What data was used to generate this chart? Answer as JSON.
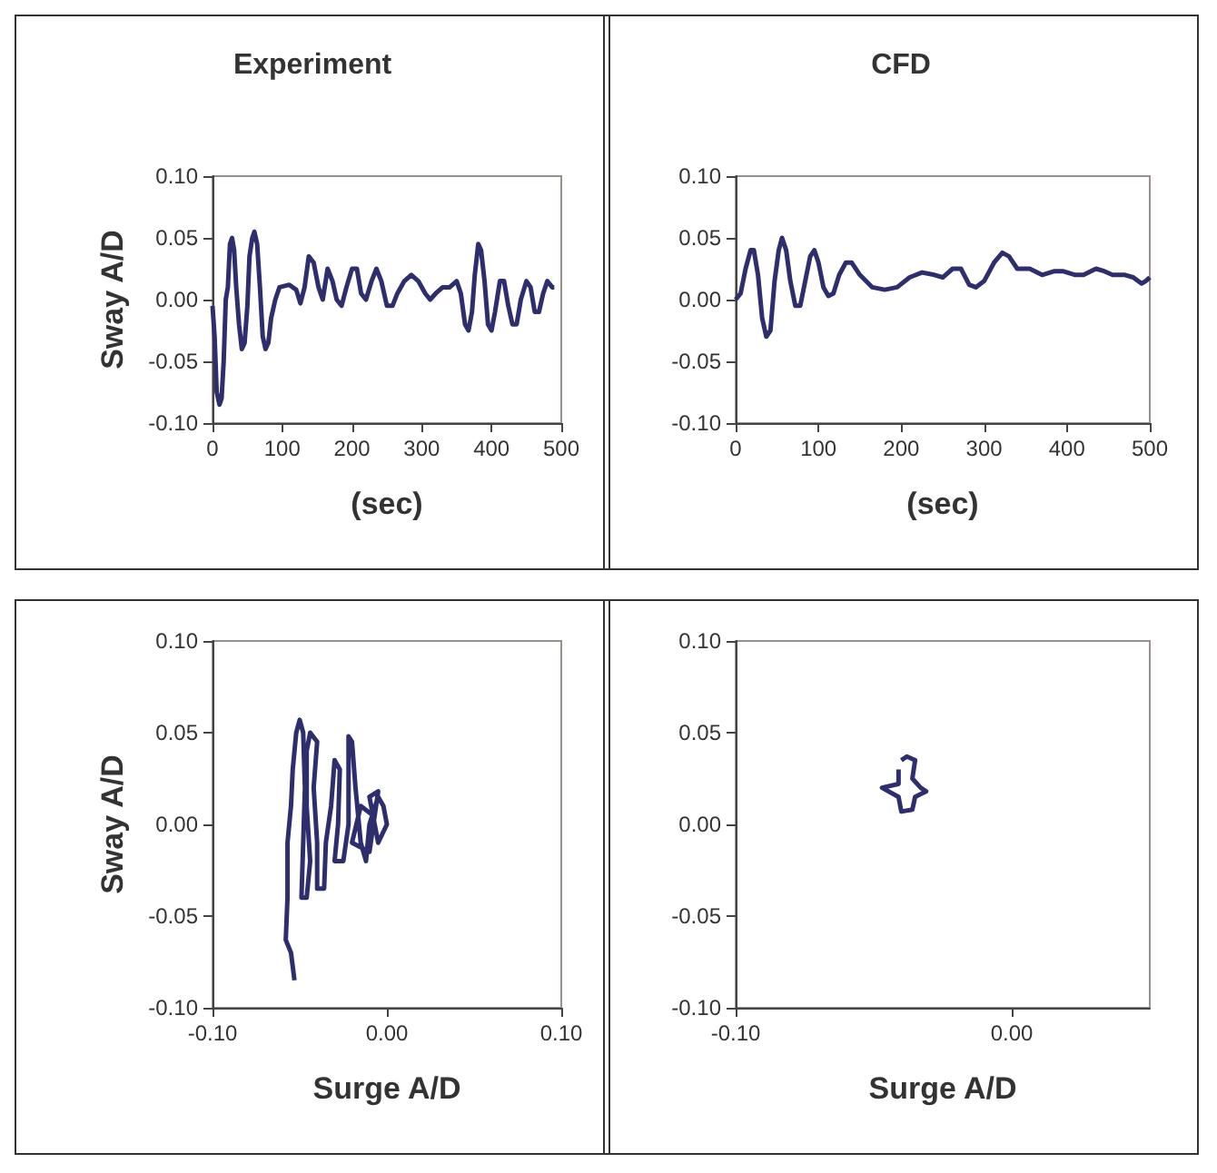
{
  "chart_data": [
    {
      "type": "line",
      "title": "Experiment",
      "xlabel": "(sec)",
      "ylabel": "Sway A/D",
      "marker": "none",
      "grid": false,
      "xlim": [
        0,
        500
      ],
      "xticks": [
        0,
        100,
        200,
        300,
        400,
        500
      ],
      "ylim": [
        -0.1,
        0.1
      ],
      "yticks": [
        {
          "value": -0.1,
          "label": "-0.10"
        },
        {
          "value": -0.05,
          "label": "-0.05"
        },
        {
          "value": 0,
          "label": "0.00"
        },
        {
          "value": 0.05,
          "label": "0.05"
        },
        {
          "value": 0.1,
          "label": "0.10"
        }
      ],
      "series": [
        {
          "color": "#2e2e6e",
          "x": [
            0,
            3,
            6,
            10,
            13,
            16,
            19,
            22,
            25,
            28,
            31,
            34,
            38,
            42,
            46,
            50,
            53,
            57,
            60,
            64,
            68,
            72,
            76,
            80,
            84,
            90,
            96,
            110,
            120,
            126,
            132,
            138,
            145,
            152,
            158,
            165,
            172,
            178,
            185,
            192,
            200,
            207,
            213,
            220,
            228,
            235,
            242,
            250,
            258,
            265,
            275,
            285,
            295,
            305,
            312,
            320,
            330,
            340,
            350,
            356,
            362,
            367,
            372,
            376,
            381,
            385,
            390,
            395,
            400,
            405,
            412,
            418,
            424,
            430,
            436,
            442,
            450,
            456,
            462,
            468,
            474,
            480,
            487,
            490
          ],
          "values": [
            -0.005,
            -0.03,
            -0.075,
            -0.085,
            -0.08,
            -0.05,
            0.0,
            0.01,
            0.045,
            0.05,
            0.04,
            0.01,
            -0.02,
            -0.04,
            -0.035,
            -0.005,
            0.035,
            0.05,
            0.055,
            0.045,
            0.01,
            -0.03,
            -0.04,
            -0.035,
            -0.015,
            0.0,
            0.01,
            0.012,
            0.008,
            -0.003,
            0.01,
            0.035,
            0.03,
            0.01,
            0.0,
            0.025,
            0.015,
            0.0,
            -0.005,
            0.01,
            0.025,
            0.025,
            0.005,
            0.0,
            0.015,
            0.025,
            0.015,
            -0.005,
            -0.005,
            0.005,
            0.015,
            0.02,
            0.015,
            0.005,
            0.0,
            0.005,
            0.01,
            0.01,
            0.015,
            0.005,
            -0.02,
            -0.025,
            -0.01,
            0.02,
            0.045,
            0.04,
            0.015,
            -0.02,
            -0.025,
            -0.01,
            0.015,
            0.015,
            -0.005,
            -0.02,
            -0.02,
            0.0,
            0.015,
            0.01,
            -0.01,
            -0.01,
            0.005,
            0.015,
            0.01,
            0.01
          ]
        }
      ]
    },
    {
      "type": "line",
      "title": "CFD",
      "xlabel": "(sec)",
      "marker": "none",
      "grid": false,
      "xlim": [
        0,
        500
      ],
      "xticks": [
        0,
        100,
        200,
        300,
        400,
        500
      ],
      "ylim": [
        -0.1,
        0.1
      ],
      "yticks": [
        {
          "value": -0.1,
          "label": "-0.10"
        },
        {
          "value": -0.05,
          "label": "-0.05"
        },
        {
          "value": 0,
          "label": "0.00"
        },
        {
          "value": 0.05,
          "label": "0.05"
        },
        {
          "value": 0.1,
          "label": "0.10"
        }
      ],
      "series": [
        {
          "color": "#2e2e6e",
          "x": [
            0,
            6,
            12,
            18,
            22,
            27,
            32,
            37,
            42,
            47,
            52,
            56,
            61,
            66,
            72,
            78,
            84,
            90,
            95,
            100,
            106,
            112,
            118,
            125,
            133,
            140,
            150,
            165,
            180,
            195,
            210,
            225,
            240,
            250,
            262,
            272,
            282,
            290,
            300,
            312,
            322,
            330,
            340,
            355,
            370,
            385,
            395,
            410,
            420,
            435,
            445,
            455,
            470,
            480,
            490,
            495,
            500
          ],
          "values": [
            0.0,
            0.005,
            0.025,
            0.04,
            0.04,
            0.02,
            -0.015,
            -0.03,
            -0.025,
            0.015,
            0.04,
            0.05,
            0.04,
            0.015,
            -0.005,
            -0.005,
            0.015,
            0.035,
            0.04,
            0.03,
            0.01,
            0.003,
            0.005,
            0.02,
            0.03,
            0.03,
            0.02,
            0.01,
            0.008,
            0.01,
            0.018,
            0.022,
            0.02,
            0.018,
            0.025,
            0.025,
            0.012,
            0.01,
            0.015,
            0.03,
            0.038,
            0.035,
            0.025,
            0.025,
            0.02,
            0.023,
            0.023,
            0.02,
            0.02,
            0.025,
            0.023,
            0.02,
            0.02,
            0.018,
            0.013,
            0.015,
            0.018
          ]
        }
      ]
    },
    {
      "type": "line",
      "xlabel": "Surge A/D",
      "ylabel": "Sway A/D",
      "marker": "none",
      "grid": false,
      "xlim": [
        -0.1,
        0.1
      ],
      "xticks": [
        {
          "value": -0.1,
          "label": "-0.10"
        },
        {
          "value": 0,
          "label": "0.00"
        },
        {
          "value": 0.1,
          "label": "0.10"
        }
      ],
      "ylim": [
        -0.1,
        0.1
      ],
      "yticks": [
        {
          "value": -0.1,
          "label": "-0.10"
        },
        {
          "value": -0.05,
          "label": "-0.05"
        },
        {
          "value": 0,
          "label": "0.00"
        },
        {
          "value": 0.05,
          "label": "0.05"
        },
        {
          "value": 0.1,
          "label": "0.10"
        }
      ],
      "series": [
        {
          "color": "#2e2e6e",
          "x": [
            -0.053,
            -0.055,
            -0.058,
            -0.057,
            -0.057,
            -0.055,
            -0.054,
            -0.052,
            -0.05,
            -0.048,
            -0.047,
            -0.048,
            -0.049,
            -0.046,
            -0.044,
            -0.046,
            -0.046,
            -0.044,
            -0.04,
            -0.042,
            -0.04,
            -0.04,
            -0.036,
            -0.035,
            -0.032,
            -0.03,
            -0.027,
            -0.028,
            -0.03,
            -0.025,
            -0.022,
            -0.022,
            -0.02,
            -0.018,
            -0.015,
            -0.012,
            -0.01,
            -0.005,
            -0.002,
            0.0,
            -0.005,
            -0.01,
            -0.005,
            -0.01,
            -0.02,
            -0.015,
            -0.008
          ],
          "values": [
            -0.085,
            -0.07,
            -0.063,
            -0.04,
            -0.01,
            0.01,
            0.03,
            0.05,
            0.057,
            0.05,
            0.02,
            -0.01,
            -0.04,
            -0.04,
            -0.02,
            0.01,
            0.04,
            0.05,
            0.045,
            0.02,
            -0.01,
            -0.035,
            -0.035,
            -0.01,
            0.01,
            0.035,
            0.03,
            0.0,
            -0.02,
            -0.02,
            0.0,
            0.048,
            0.045,
            0.02,
            -0.01,
            -0.02,
            0.0,
            0.015,
            0.01,
            0.0,
            -0.01,
            0.015,
            0.018,
            -0.015,
            -0.01,
            0.01,
            0.005
          ]
        }
      ]
    },
    {
      "type": "line",
      "xlabel": "Surge A/D",
      "marker": "none",
      "grid": false,
      "xlim": [
        -0.1,
        0.05
      ],
      "xticks": [
        {
          "value": -0.1,
          "label": "-0.10"
        },
        {
          "value": 0,
          "label": "0.00"
        }
      ],
      "ylim": [
        -0.1,
        0.1
      ],
      "yticks": [
        {
          "value": -0.1,
          "label": "-0.10"
        },
        {
          "value": -0.05,
          "label": "-0.05"
        },
        {
          "value": 0,
          "label": "0.00"
        },
        {
          "value": 0.05,
          "label": "0.05"
        },
        {
          "value": 0.1,
          "label": "0.10"
        }
      ],
      "series": [
        {
          "color": "#2e2e6e",
          "x": [
            -0.04,
            -0.038,
            -0.035,
            -0.036,
            -0.033,
            -0.031,
            -0.035,
            -0.036,
            -0.04,
            -0.041,
            -0.047,
            -0.041,
            -0.041
          ],
          "values": [
            0.035,
            0.037,
            0.035,
            0.025,
            0.02,
            0.018,
            0.015,
            0.008,
            0.007,
            0.015,
            0.02,
            0.022,
            0.03
          ]
        }
      ]
    }
  ]
}
